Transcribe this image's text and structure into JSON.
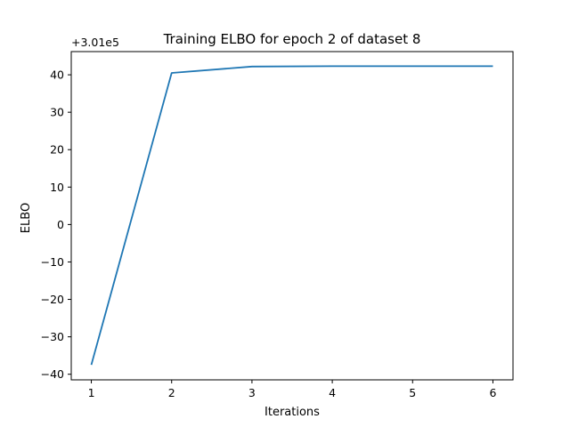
{
  "chart_data": {
    "type": "line",
    "title": "Training ELBO for epoch 2 of dataset 8",
    "xlabel": "Iterations",
    "ylabel": "ELBO",
    "axis_offset_label": "+3.01e5",
    "x": [
      1,
      2,
      3,
      4,
      5,
      6
    ],
    "series": [
      {
        "values": [
          -37.5,
          40.5,
          42.2,
          42.3,
          42.3,
          42.3
        ],
        "color": "#1f77b4"
      }
    ],
    "xlim": [
      0.75,
      6.25
    ],
    "ylim": [
      -41.5,
      46.2
    ],
    "xticks": [
      1,
      2,
      3,
      4,
      5,
      6
    ],
    "yticks": [
      40,
      30,
      20,
      10,
      0,
      -10,
      -20,
      -30,
      -40
    ],
    "ytick_labels": [
      "40",
      "30",
      "20",
      "10",
      "0",
      "−10",
      "−20",
      "−30",
      "−40"
    ],
    "grid": false,
    "legend": "none"
  }
}
